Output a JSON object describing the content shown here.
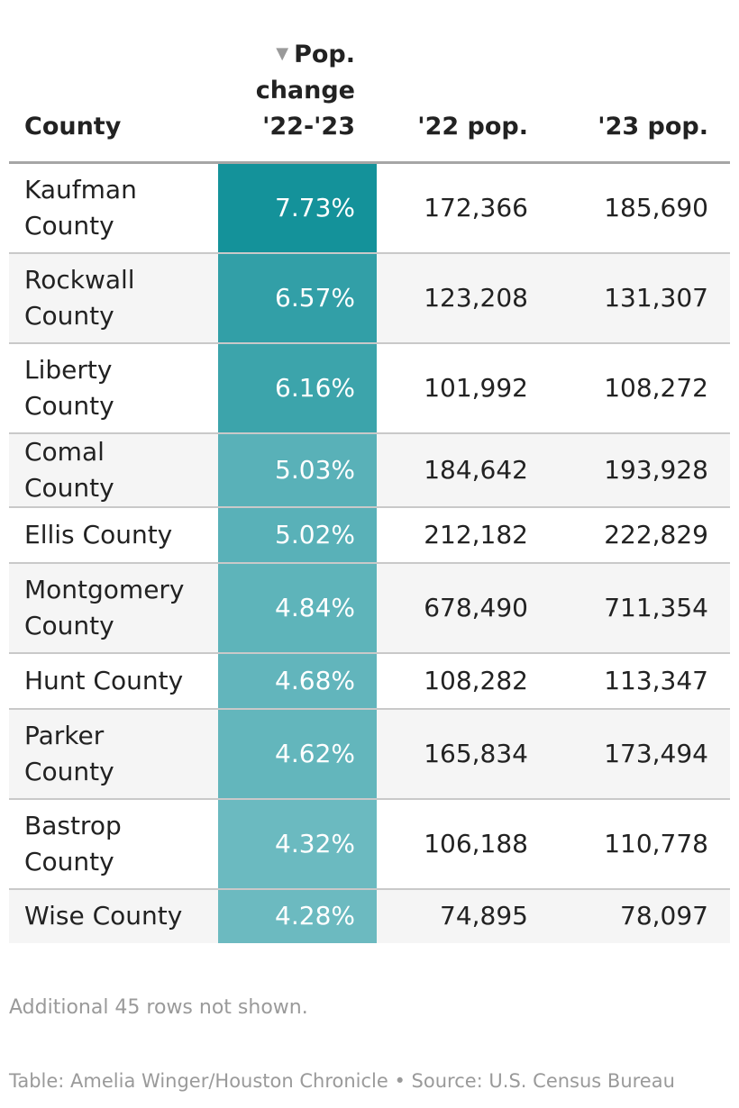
{
  "chart_data": {
    "type": "table",
    "columns": [
      {
        "key": "county",
        "label": "County",
        "align": "left"
      },
      {
        "key": "change",
        "label": "Pop. change '22-'23",
        "label_lines": [
          "Pop.",
          "change",
          "'22-'23"
        ],
        "sorted": "descending",
        "sort_icon": "triangle-down-icon",
        "align": "right"
      },
      {
        "key": "pop22",
        "label": "'22 pop.",
        "align": "right"
      },
      {
        "key": "pop23",
        "label": "'23 pop.",
        "align": "right"
      }
    ],
    "rows": [
      {
        "county": "Kaufman County",
        "change": "7.73%",
        "change_value": 7.73,
        "pop22": "172,366",
        "pop23": "185,690"
      },
      {
        "county": "Rockwall County",
        "change": "6.57%",
        "change_value": 6.57,
        "pop22": "123,208",
        "pop23": "131,307"
      },
      {
        "county": "Liberty County",
        "change": "6.16%",
        "change_value": 6.16,
        "pop22": "101,992",
        "pop23": "108,272"
      },
      {
        "county": "Comal County",
        "change": "5.03%",
        "change_value": 5.03,
        "pop22": "184,642",
        "pop23": "193,928"
      },
      {
        "county": "Ellis County",
        "change": "5.02%",
        "change_value": 5.02,
        "pop22": "212,182",
        "pop23": "222,829"
      },
      {
        "county": "Montgomery County",
        "change": "4.84%",
        "change_value": 4.84,
        "pop22": "678,490",
        "pop23": "711,354"
      },
      {
        "county": "Hunt County",
        "change": "4.68%",
        "change_value": 4.68,
        "pop22": "108,282",
        "pop23": "113,347"
      },
      {
        "county": "Parker County",
        "change": "4.62%",
        "change_value": 4.62,
        "pop22": "165,834",
        "pop23": "173,494"
      },
      {
        "county": "Bastrop County",
        "change": "4.32%",
        "change_value": 4.32,
        "pop22": "106,188",
        "pop23": "110,778"
      },
      {
        "county": "Wise County",
        "change": "4.28%",
        "change_value": 4.28,
        "pop22": "74,895",
        "pop23": "78,097"
      }
    ],
    "heatmap_column": "change",
    "heat_colors": {
      "high": "#14929a",
      "low": "#6cbac0"
    },
    "note": "Additional 45 rows not shown.",
    "credit": "Table: Amelia Winger/Houston Chronicle • Source: U.S. Census Bureau"
  }
}
